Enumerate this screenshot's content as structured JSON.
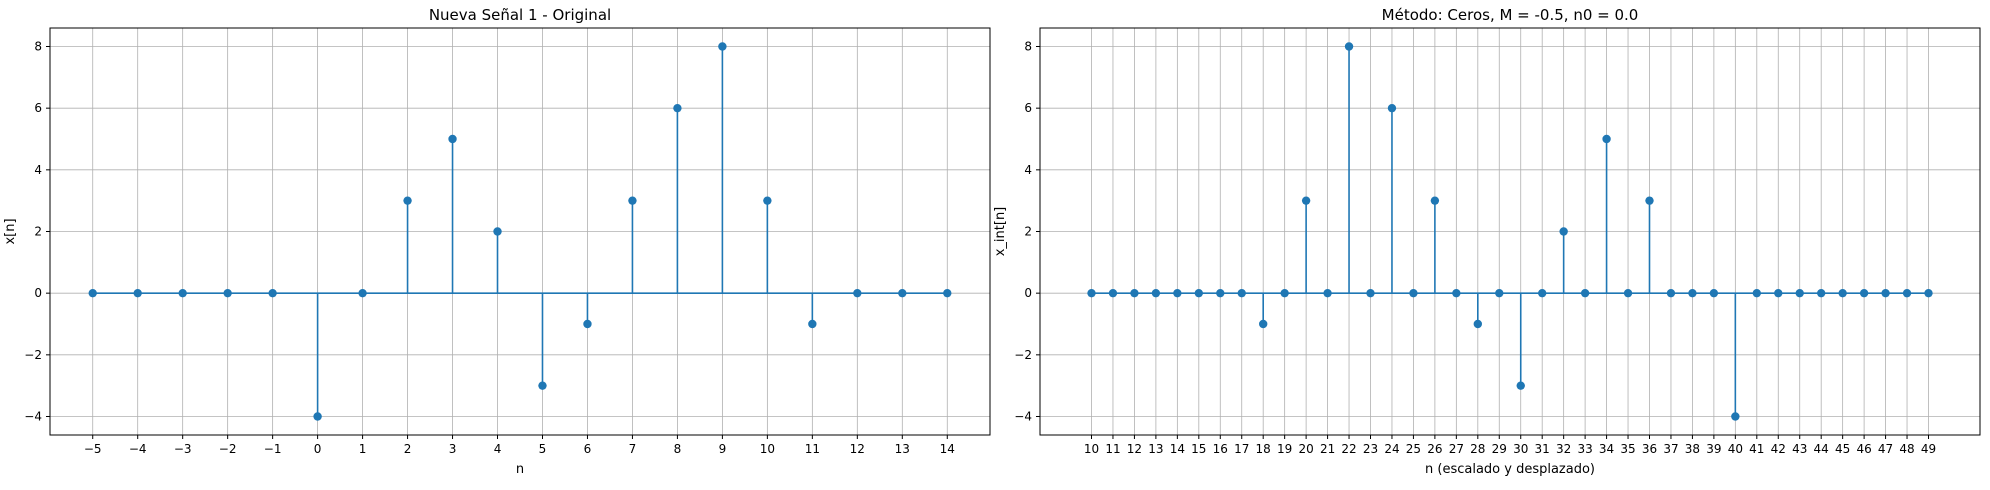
{
  "colors": {
    "stem": "#1f77b4",
    "grid": "#b0b0b0"
  },
  "chart_data": [
    {
      "type": "stem",
      "title": "Nueva Señal 1 - Original",
      "xlabel": "n",
      "ylabel": "x[n]",
      "x": [
        -5,
        -4,
        -3,
        -2,
        -1,
        0,
        1,
        2,
        3,
        4,
        5,
        6,
        7,
        8,
        9,
        10,
        11,
        12,
        13,
        14
      ],
      "y": [
        0,
        0,
        0,
        0,
        0,
        -4,
        0,
        3,
        5,
        2,
        -3,
        -1,
        3,
        6,
        8,
        3,
        -1,
        0,
        0,
        0
      ],
      "xticks": [
        "−5",
        "−4",
        "−3",
        "−2",
        "−1",
        "0",
        "1",
        "2",
        "3",
        "4",
        "5",
        "6",
        "7",
        "8",
        "9",
        "10",
        "11",
        "12",
        "13",
        "14"
      ],
      "yticks": [
        -4,
        -2,
        0,
        2,
        4,
        6,
        8
      ],
      "ytick_labels": [
        "−4",
        "−2",
        "0",
        "2",
        "4",
        "6",
        "8"
      ],
      "xlim": [
        -5.95,
        14.95
      ],
      "ylim": [
        -4.6,
        8.6
      ],
      "grid": true
    },
    {
      "type": "stem",
      "title": "Método: Ceros, M = -0.5, n0 = 0.0",
      "xlabel": "n (escalado y desplazado)",
      "ylabel": "x_int[n]",
      "x": [
        10,
        11,
        12,
        13,
        14,
        15,
        16,
        17,
        18,
        19,
        20,
        21,
        22,
        23,
        24,
        25,
        26,
        27,
        28,
        29,
        30,
        31,
        32,
        33,
        34,
        35,
        36,
        37,
        38,
        39,
        40,
        41,
        42,
        43,
        44,
        45,
        46,
        47,
        48,
        49
      ],
      "y": [
        0,
        0,
        0,
        0,
        0,
        0,
        0,
        0,
        -1,
        0,
        3,
        0,
        8,
        0,
        6,
        0,
        3,
        0,
        -1,
        0,
        -3,
        0,
        2,
        0,
        5,
        0,
        3,
        0,
        0,
        0,
        -4,
        0,
        0,
        0,
        0,
        0,
        0,
        0,
        0,
        0
      ],
      "xticks": [
        "10",
        "11",
        "12",
        "13",
        "14",
        "15",
        "16",
        "17",
        "18",
        "19",
        "20",
        "21",
        "22",
        "23",
        "24",
        "25",
        "26",
        "27",
        "28",
        "29",
        "30",
        "31",
        "32",
        "33",
        "34",
        "35",
        "36",
        "37",
        "38",
        "39",
        "40",
        "41",
        "42",
        "43",
        "44",
        "45",
        "46",
        "47",
        "48",
        "49"
      ],
      "yticks": [
        -4,
        -2,
        0,
        2,
        4,
        6,
        8
      ],
      "ytick_labels": [
        "−4",
        "−2",
        "0",
        "2",
        "4",
        "6",
        "8"
      ],
      "xlim": [
        7.6,
        51.4
      ],
      "ylim": [
        -4.6,
        8.6
      ],
      "grid": true
    }
  ]
}
